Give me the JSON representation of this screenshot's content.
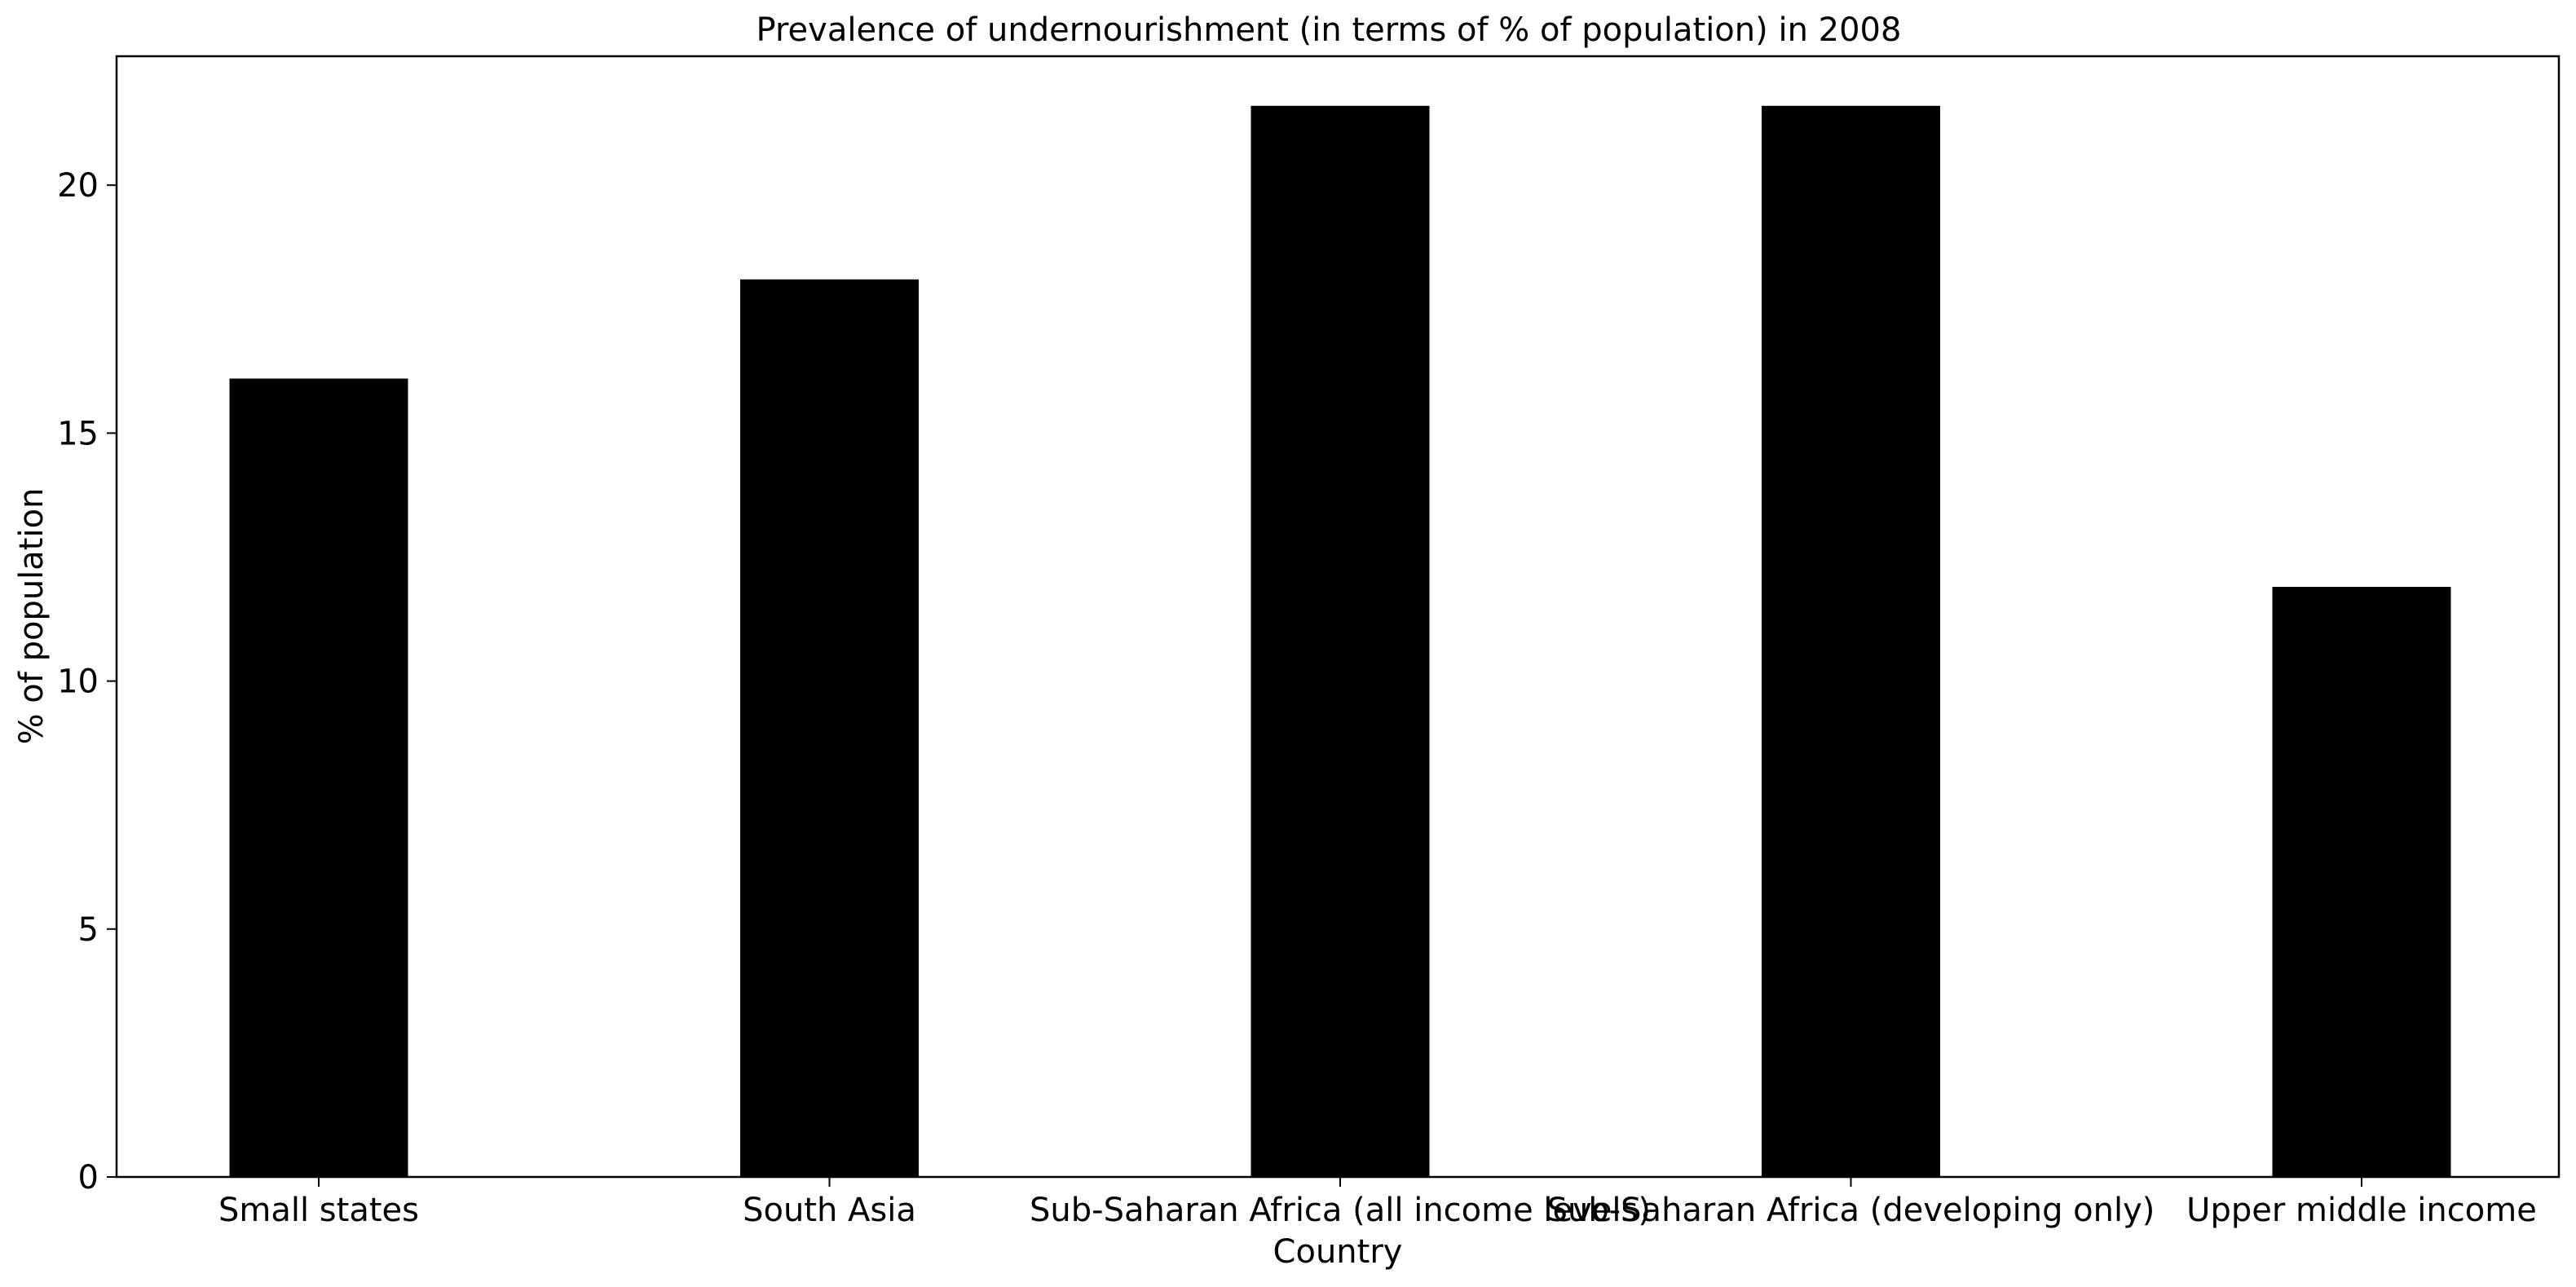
{
  "chart_data": {
    "type": "bar",
    "title": "Prevalence of undernourishment (in terms of % of population) in 2008",
    "xlabel": "Country",
    "ylabel": "% of population",
    "categories": [
      "Small states",
      "South Asia",
      "Sub-Saharan Africa (all income levels)",
      "Sub-Saharan Africa (developing only)",
      "Upper middle income"
    ],
    "values": [
      16.1,
      18.1,
      21.6,
      21.6,
      11.9
    ],
    "ylim": [
      0,
      22.6
    ],
    "yticks": [
      0,
      5,
      10,
      15,
      20
    ],
    "grid": false,
    "colors": {
      "bar": "#000000",
      "axis": "#000000",
      "background": "#ffffff"
    }
  }
}
